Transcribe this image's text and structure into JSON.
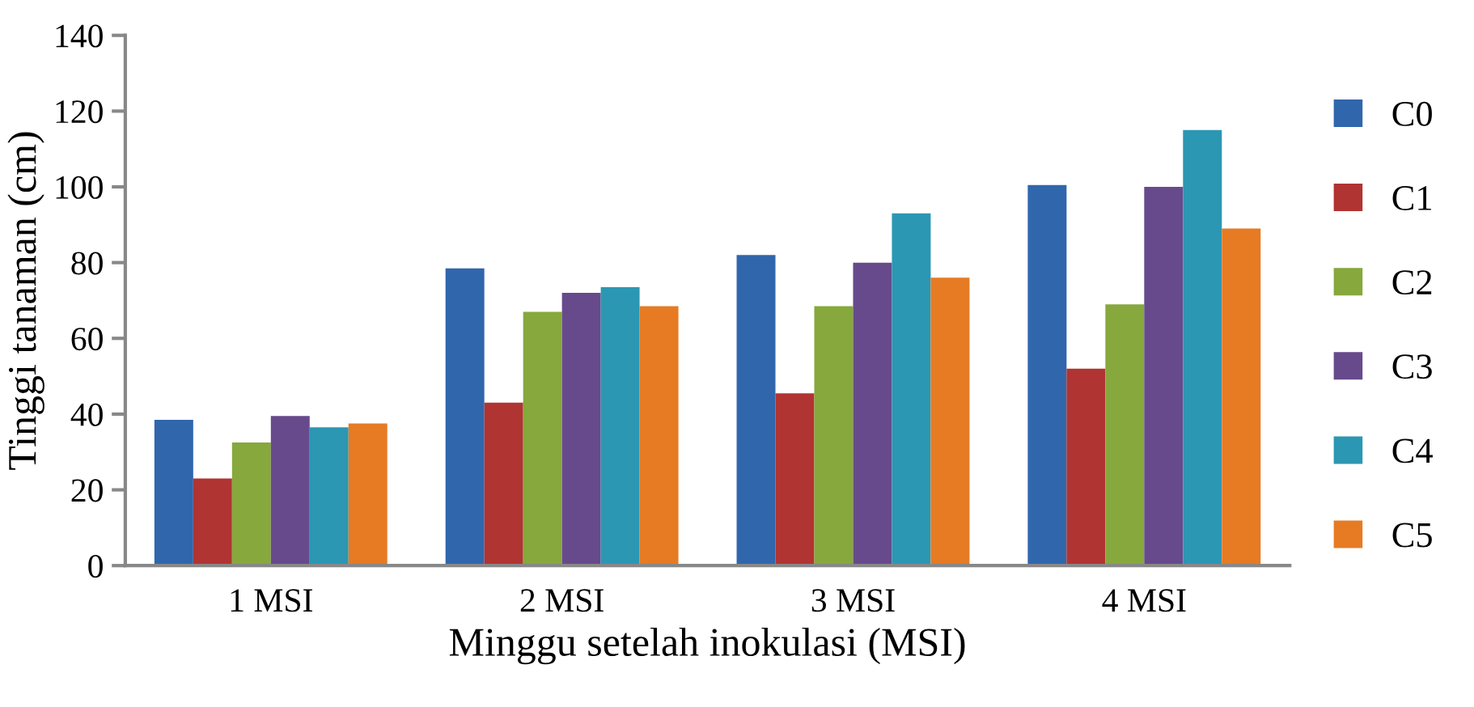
{
  "chart_data": {
    "type": "bar",
    "xlabel": "Minggu setelah inokulasi (MSI)",
    "ylabel": "Tinggi tanaman (cm)",
    "categories": [
      "1 MSI",
      "2 MSI",
      "3 MSI",
      "4 MSI"
    ],
    "series": [
      {
        "name": "C0",
        "color": "#3066ac",
        "values": [
          38.5,
          78.5,
          82,
          100.5
        ]
      },
      {
        "name": "C1",
        "color": "#b03432",
        "values": [
          23,
          43,
          45.5,
          52
        ]
      },
      {
        "name": "C2",
        "color": "#86a83c",
        "values": [
          32.5,
          67,
          68.5,
          69
        ]
      },
      {
        "name": "C3",
        "color": "#674a8c",
        "values": [
          39.5,
          72,
          80,
          100
        ]
      },
      {
        "name": "C4",
        "color": "#2b97b3",
        "values": [
          36.5,
          73.5,
          93,
          115
        ]
      },
      {
        "name": "C5",
        "color": "#e67b24",
        "values": [
          37.5,
          68.5,
          76,
          89
        ]
      }
    ],
    "ylim": [
      0,
      140
    ],
    "yticks": [
      0,
      20,
      40,
      60,
      80,
      100,
      120,
      140
    ],
    "grid": false,
    "legend": "right"
  }
}
